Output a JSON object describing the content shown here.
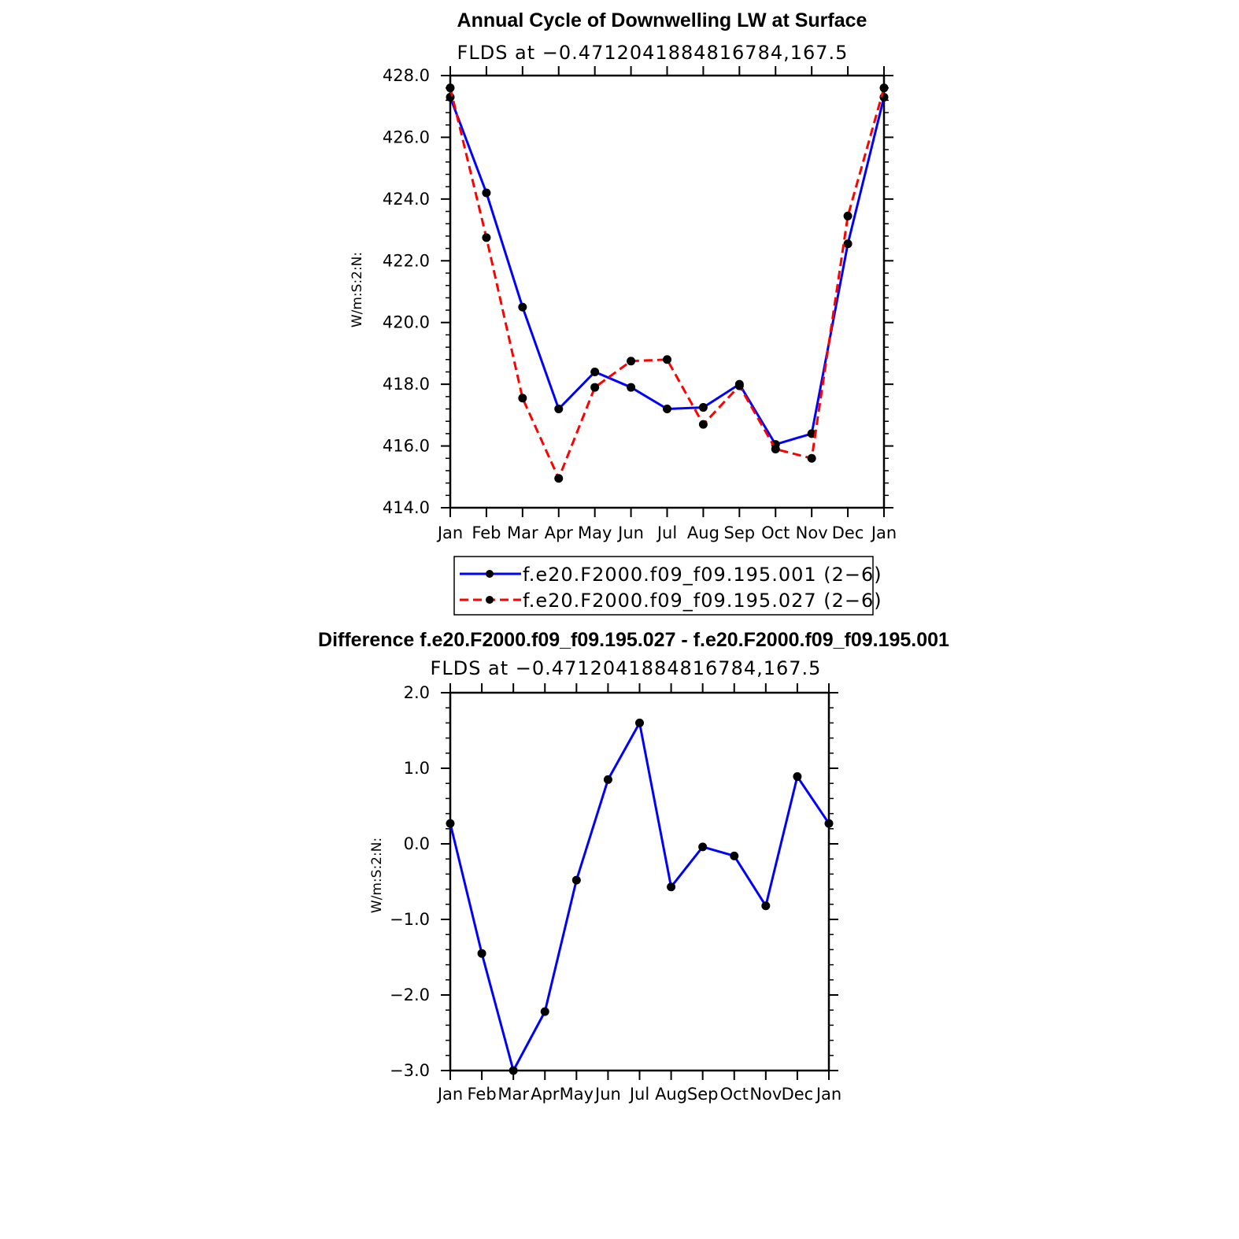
{
  "chart_data": [
    {
      "type": "line",
      "title": "Annual Cycle of Downwelling LW at Surface",
      "subtitle": "FLDS at −0.4712041884816784,167.5",
      "ylabel": "W/m:S:2:N:",
      "xlabel": "",
      "categories": [
        "Jan",
        "Feb",
        "Mar",
        "Apr",
        "May",
        "Jun",
        "Jul",
        "Aug",
        "Sep",
        "Oct",
        "Nov",
        "Dec",
        "Jan"
      ],
      "ylim": [
        414.0,
        428.0
      ],
      "yticks": [
        "414.0",
        "416.0",
        "418.0",
        "420.0",
        "422.0",
        "424.0",
        "426.0",
        "428.0"
      ],
      "legend_position": "bottom",
      "grid": false,
      "series": [
        {
          "name": "f.e20.F2000.f09_f09.195.001 (2−6)",
          "color": "#0000ff",
          "style": "solid",
          "values": [
            427.3,
            424.2,
            420.5,
            417.2,
            418.4,
            417.9,
            417.2,
            417.25,
            418.0,
            416.05,
            416.4,
            422.55,
            427.3
          ]
        },
        {
          "name": "f.e20.F2000.f09_f09.195.027 (2−6)",
          "color": "#ff0000",
          "style": "dashed",
          "values": [
            427.6,
            422.75,
            417.55,
            414.95,
            417.9,
            418.75,
            418.8,
            416.7,
            417.95,
            415.9,
            415.6,
            423.45,
            427.6
          ]
        }
      ]
    },
    {
      "type": "line",
      "title": "Difference f.e20.F2000.f09_f09.195.027 - f.e20.F2000.f09_f09.195.001",
      "subtitle": "FLDS at −0.4712041884816784,167.5",
      "ylabel": "W/m:S:2:N:",
      "xlabel": "",
      "categories": [
        "Jan",
        "Feb",
        "Mar",
        "Apr",
        "May",
        "Jun",
        "Jul",
        "Aug",
        "Sep",
        "Oct",
        "Nov",
        "Dec",
        "Jan"
      ],
      "ylim": [
        -3.0,
        2.0
      ],
      "yticks": [
        "−3.0",
        "−2.0",
        "−1.0",
        "0.0",
        "1.0",
        "2.0"
      ],
      "grid": false,
      "series": [
        {
          "color": "#0000ff",
          "style": "solid",
          "values": [
            0.27,
            -1.45,
            -3.0,
            -2.22,
            -0.48,
            0.85,
            1.6,
            -0.57,
            -0.04,
            -0.16,
            -0.82,
            0.89,
            0.27
          ]
        }
      ]
    }
  ]
}
